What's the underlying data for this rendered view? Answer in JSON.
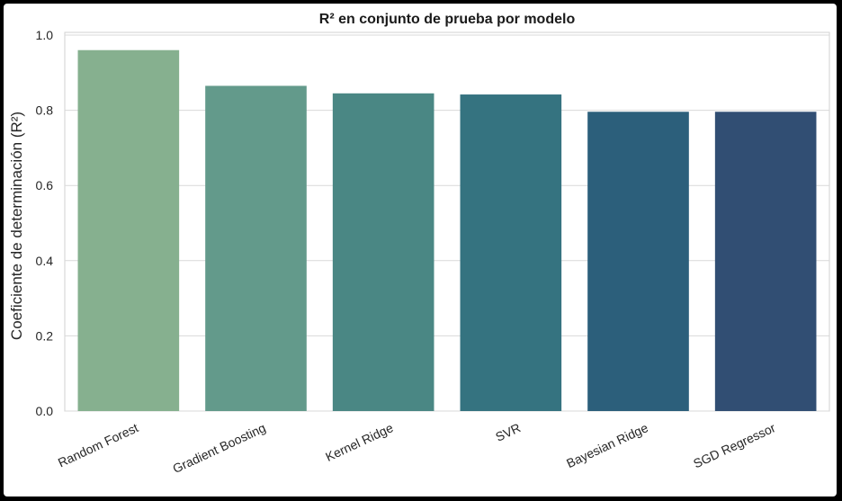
{
  "chart_data": {
    "type": "bar",
    "title": "R² en conjunto de prueba por modelo",
    "xlabel": "",
    "ylabel": "Coeficiente de determinación (R²)",
    "categories": [
      "Random Forest",
      "Gradient Boosting",
      "Kernel Ridge",
      "SVR",
      "Bayesian Ridge",
      "SGD Regressor"
    ],
    "values": [
      0.96,
      0.865,
      0.845,
      0.842,
      0.796,
      0.796
    ],
    "ylim": [
      0,
      1.0
    ],
    "yticks": [
      "0.0",
      "0.2",
      "0.4",
      "0.6",
      "0.8",
      "1.0"
    ],
    "grid": "horizontal",
    "colors": [
      "#86b08f",
      "#639a8b",
      "#4a8784",
      "#357380",
      "#2c5f7b",
      "#314e73"
    ]
  }
}
